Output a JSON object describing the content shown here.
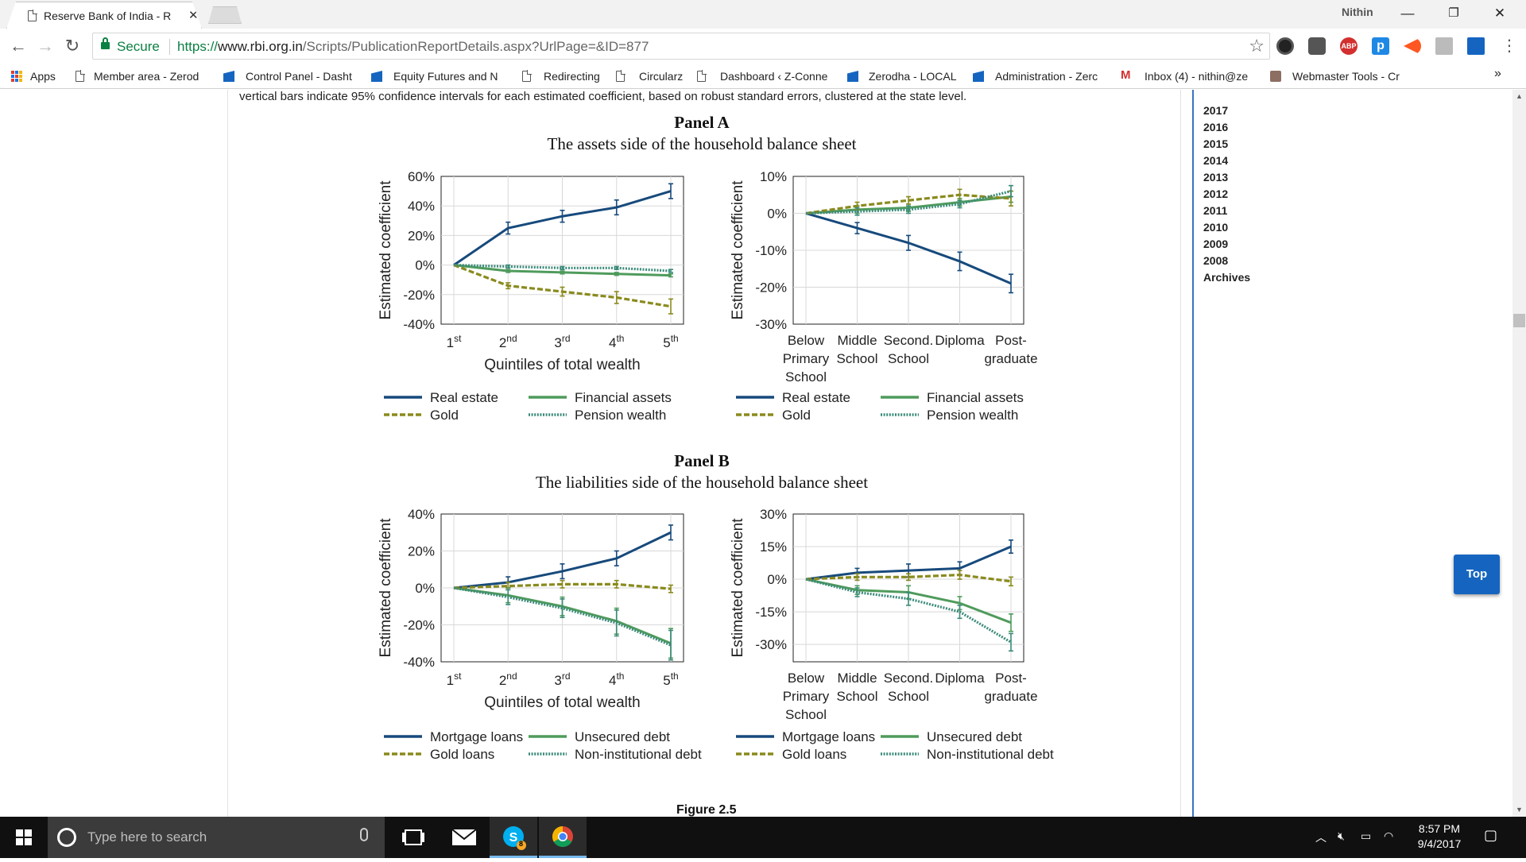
{
  "browser": {
    "tab_title": "Reserve Bank of India - R",
    "tab_title_fade": "",
    "user": "Nithin",
    "secure_label": "Secure",
    "url_scheme": "https://",
    "url_host": "www.rbi.org.in",
    "url_path": "/Scripts/PublicationReportDetails.aspx?UrlPage=&ID=877",
    "extensions": [
      "ABP",
      "p"
    ]
  },
  "bookmarks": [
    {
      "label": "Apps",
      "icon": "apps-icon"
    },
    {
      "label": "Member area - Zerod",
      "icon": "page-icon"
    },
    {
      "label": "Control Panel - Dasht",
      "icon": "bookmark-flag-icon"
    },
    {
      "label": "Equity Futures and N",
      "icon": "bookmark-flag-icon"
    },
    {
      "label": "Redirecting",
      "icon": "page-icon"
    },
    {
      "label": "Circularz",
      "icon": "page-icon"
    },
    {
      "label": "Dashboard ‹ Z-Conne",
      "icon": "page-icon"
    },
    {
      "label": "Zerodha - LOCAL",
      "icon": "bookmark-flag-icon"
    },
    {
      "label": "Administration - Zerc",
      "icon": "bookmark-flag-icon"
    },
    {
      "label": "Inbox (4) - nithin@ze",
      "icon": "gmail-icon"
    },
    {
      "label": "Webmaster Tools - Cr",
      "icon": "webmaster-icon"
    }
  ],
  "bookmarks_overflow": "»",
  "page": {
    "caption": "vertical bars indicate 95% confidence intervals for each estimated coefficient, based on robust standard errors, clustered at the state level.",
    "panel_a_title": "Panel A",
    "panel_a_subtitle": "The assets side of the household balance sheet",
    "panel_b_title": "Panel B",
    "panel_b_subtitle": "The liabilities side of the household balance sheet",
    "figure_caption": "Figure 2.5",
    "top_button": "Top",
    "archive_years": [
      "2017",
      "2016",
      "2015",
      "2014",
      "2013",
      "2012",
      "2011",
      "2010",
      "2009",
      "2008",
      "Archives"
    ]
  },
  "colors": {
    "navy": "#174a7c",
    "green": "#4f9b5c",
    "olive": "#8a8a1e",
    "teal": "#3b8a7a",
    "link_blue": "#1565c0",
    "secure_green": "#0b8043"
  },
  "chart_data": [
    {
      "type": "line",
      "panel": "Panel A",
      "title": "",
      "xlabel": "Quintiles of total wealth",
      "ylabel": "Estimated coefficient",
      "x": [
        "1st",
        "2nd",
        "3rd",
        "4th",
        "5th"
      ],
      "y_ticks": [
        "60%",
        "40%",
        "20%",
        "0%",
        "-20%",
        "-40%"
      ],
      "ylim": [
        -40,
        60
      ],
      "series": [
        {
          "name": "Real estate",
          "style": "solid",
          "color": "navy",
          "values": [
            0,
            25,
            33,
            39,
            50
          ],
          "ci": [
            0,
            4,
            4,
            5,
            5
          ]
        },
        {
          "name": "Financial assets",
          "style": "solid",
          "color": "green",
          "values": [
            0,
            -4,
            -5,
            -6,
            -7
          ],
          "ci": [
            0,
            1,
            1,
            1,
            1
          ]
        },
        {
          "name": "Gold",
          "style": "dashed",
          "color": "olive",
          "values": [
            0,
            -14,
            -18,
            -22,
            -28
          ],
          "ci": [
            0,
            2,
            3,
            4,
            5
          ]
        },
        {
          "name": "Pension wealth",
          "style": "dotted",
          "color": "teal",
          "values": [
            0,
            -1,
            -2,
            -2,
            -4
          ],
          "ci": [
            0,
            1,
            1,
            1,
            1
          ]
        }
      ]
    },
    {
      "type": "line",
      "panel": "Panel A",
      "title": "",
      "xlabel": "",
      "ylabel": "Estimated coefficient",
      "x": [
        "Below Primary School",
        "Middle School",
        "Second. School",
        "Diploma",
        "Post-graduate"
      ],
      "y_ticks": [
        "10%",
        "0%",
        "-10%",
        "-20%",
        "-30%"
      ],
      "ylim": [
        -30,
        10
      ],
      "series": [
        {
          "name": "Real estate",
          "style": "solid",
          "color": "navy",
          "values": [
            0,
            -4,
            -8,
            -13,
            -19
          ],
          "ci": [
            0,
            1.5,
            2,
            2.5,
            2.5
          ]
        },
        {
          "name": "Financial assets",
          "style": "solid",
          "color": "green",
          "values": [
            0,
            1,
            1.5,
            3,
            4.5
          ],
          "ci": [
            0,
            1,
            1,
            1,
            1.5
          ]
        },
        {
          "name": "Gold",
          "style": "dashed",
          "color": "olive",
          "values": [
            0,
            2,
            3.5,
            5,
            4
          ],
          "ci": [
            0,
            1,
            1,
            1.5,
            2
          ]
        },
        {
          "name": "Pension wealth",
          "style": "dotted",
          "color": "teal",
          "values": [
            0,
            0.5,
            1,
            2.5,
            6
          ],
          "ci": [
            0,
            1,
            1,
            1,
            1.5
          ]
        }
      ]
    },
    {
      "type": "line",
      "panel": "Panel B",
      "title": "",
      "xlabel": "Quintiles of total wealth",
      "ylabel": "Estimated coefficient",
      "x": [
        "1st",
        "2nd",
        "3rd",
        "4th",
        "5th"
      ],
      "y_ticks": [
        "40%",
        "20%",
        "0%",
        "-20%",
        "-40%"
      ],
      "ylim": [
        -40,
        40
      ],
      "series": [
        {
          "name": "Mortgage loans",
          "style": "solid",
          "color": "navy",
          "values": [
            0,
            3,
            9,
            16,
            30
          ],
          "ci": [
            0,
            3,
            4,
            4,
            4
          ]
        },
        {
          "name": "Unsecured debt",
          "style": "solid",
          "color": "green",
          "values": [
            0,
            -4,
            -10,
            -18,
            -30
          ],
          "ci": [
            0,
            4,
            5,
            7,
            8
          ]
        },
        {
          "name": "Gold loans",
          "style": "dashed",
          "color": "olive",
          "values": [
            0,
            1,
            2,
            2,
            -0.5
          ],
          "ci": [
            0,
            2,
            2,
            2,
            2
          ]
        },
        {
          "name": "Non-institutional debt",
          "style": "dotted",
          "color": "teal",
          "values": [
            0,
            -5,
            -11,
            -19,
            -31
          ],
          "ci": [
            0,
            4,
            5,
            7,
            8
          ]
        }
      ]
    },
    {
      "type": "line",
      "panel": "Panel B",
      "title": "",
      "xlabel": "",
      "ylabel": "Estimated coefficient",
      "x": [
        "Below Primary School",
        "Middle School",
        "Second. School",
        "Diploma",
        "Post-graduate"
      ],
      "y_ticks": [
        "30%",
        "15%",
        "0%",
        "-15%",
        "-30%"
      ],
      "ylim": [
        -40,
        30
      ],
      "series": [
        {
          "name": "Mortgage loans",
          "style": "solid",
          "color": "navy",
          "values": [
            0,
            3,
            4,
            5,
            15
          ],
          "ci": [
            0,
            2,
            3,
            3,
            3
          ]
        },
        {
          "name": "Unsecured debt",
          "style": "solid",
          "color": "green",
          "values": [
            0,
            -5,
            -6,
            -11,
            -20
          ],
          "ci": [
            0,
            2,
            3,
            3,
            4
          ]
        },
        {
          "name": "Gold loans",
          "style": "dashed",
          "color": "olive",
          "values": [
            0,
            1,
            1,
            2,
            -1
          ],
          "ci": [
            0,
            1.5,
            1.5,
            2,
            2
          ]
        },
        {
          "name": "Non-institutional debt",
          "style": "dotted",
          "color": "teal",
          "values": [
            0,
            -6,
            -9,
            -15,
            -29
          ],
          "ci": [
            0,
            2,
            3,
            3,
            4
          ]
        }
      ]
    }
  ],
  "taskbar": {
    "search_placeholder": "Type here to search",
    "time": "8:57 PM",
    "date": "9/4/2017",
    "skype_badge": "8"
  }
}
